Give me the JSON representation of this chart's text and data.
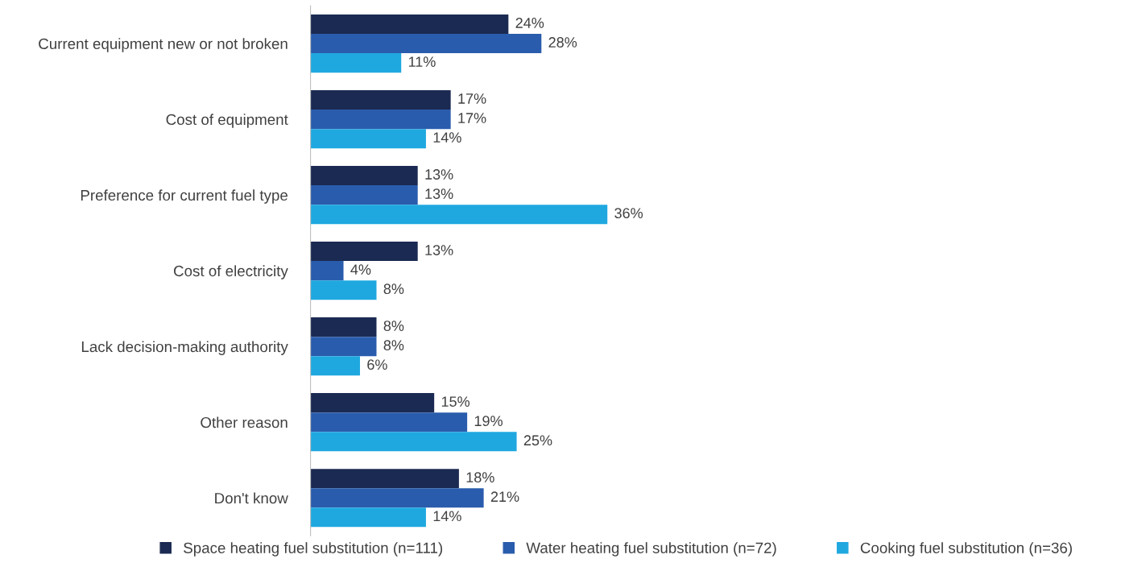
{
  "chart_data": {
    "type": "bar",
    "orientation": "horizontal",
    "categories": [
      "Current equipment new or not broken",
      "Cost of equipment",
      "Preference for current fuel type",
      "Cost of electricity",
      "Lack decision-making authority",
      "Other reason",
      "Don't know"
    ],
    "series": [
      {
        "name": "Space heating fuel substitution (n=111)",
        "color": "#1b2a52",
        "values": [
          24,
          17,
          13,
          13,
          8,
          15,
          18
        ],
        "value_labels": [
          "24%",
          "17%",
          "13%",
          "13%",
          "8%",
          "15%",
          "18%"
        ]
      },
      {
        "name": "Water heating fuel substitution (n=72)",
        "color": "#2a5cad",
        "values": [
          28,
          17,
          13,
          4,
          8,
          19,
          21
        ],
        "value_labels": [
          "28%",
          "17%",
          "13%",
          "4%",
          "8%",
          "19%",
          "21%"
        ]
      },
      {
        "name": "Cooking fuel substitution (n=36)",
        "color": "#1fa8e0",
        "values": [
          11,
          14,
          36,
          8,
          6,
          25,
          14
        ],
        "value_labels": [
          "11%",
          "14%",
          "36%",
          "8%",
          "6%",
          "25%",
          "14%"
        ]
      }
    ],
    "legend": "bottom",
    "grid": false
  }
}
